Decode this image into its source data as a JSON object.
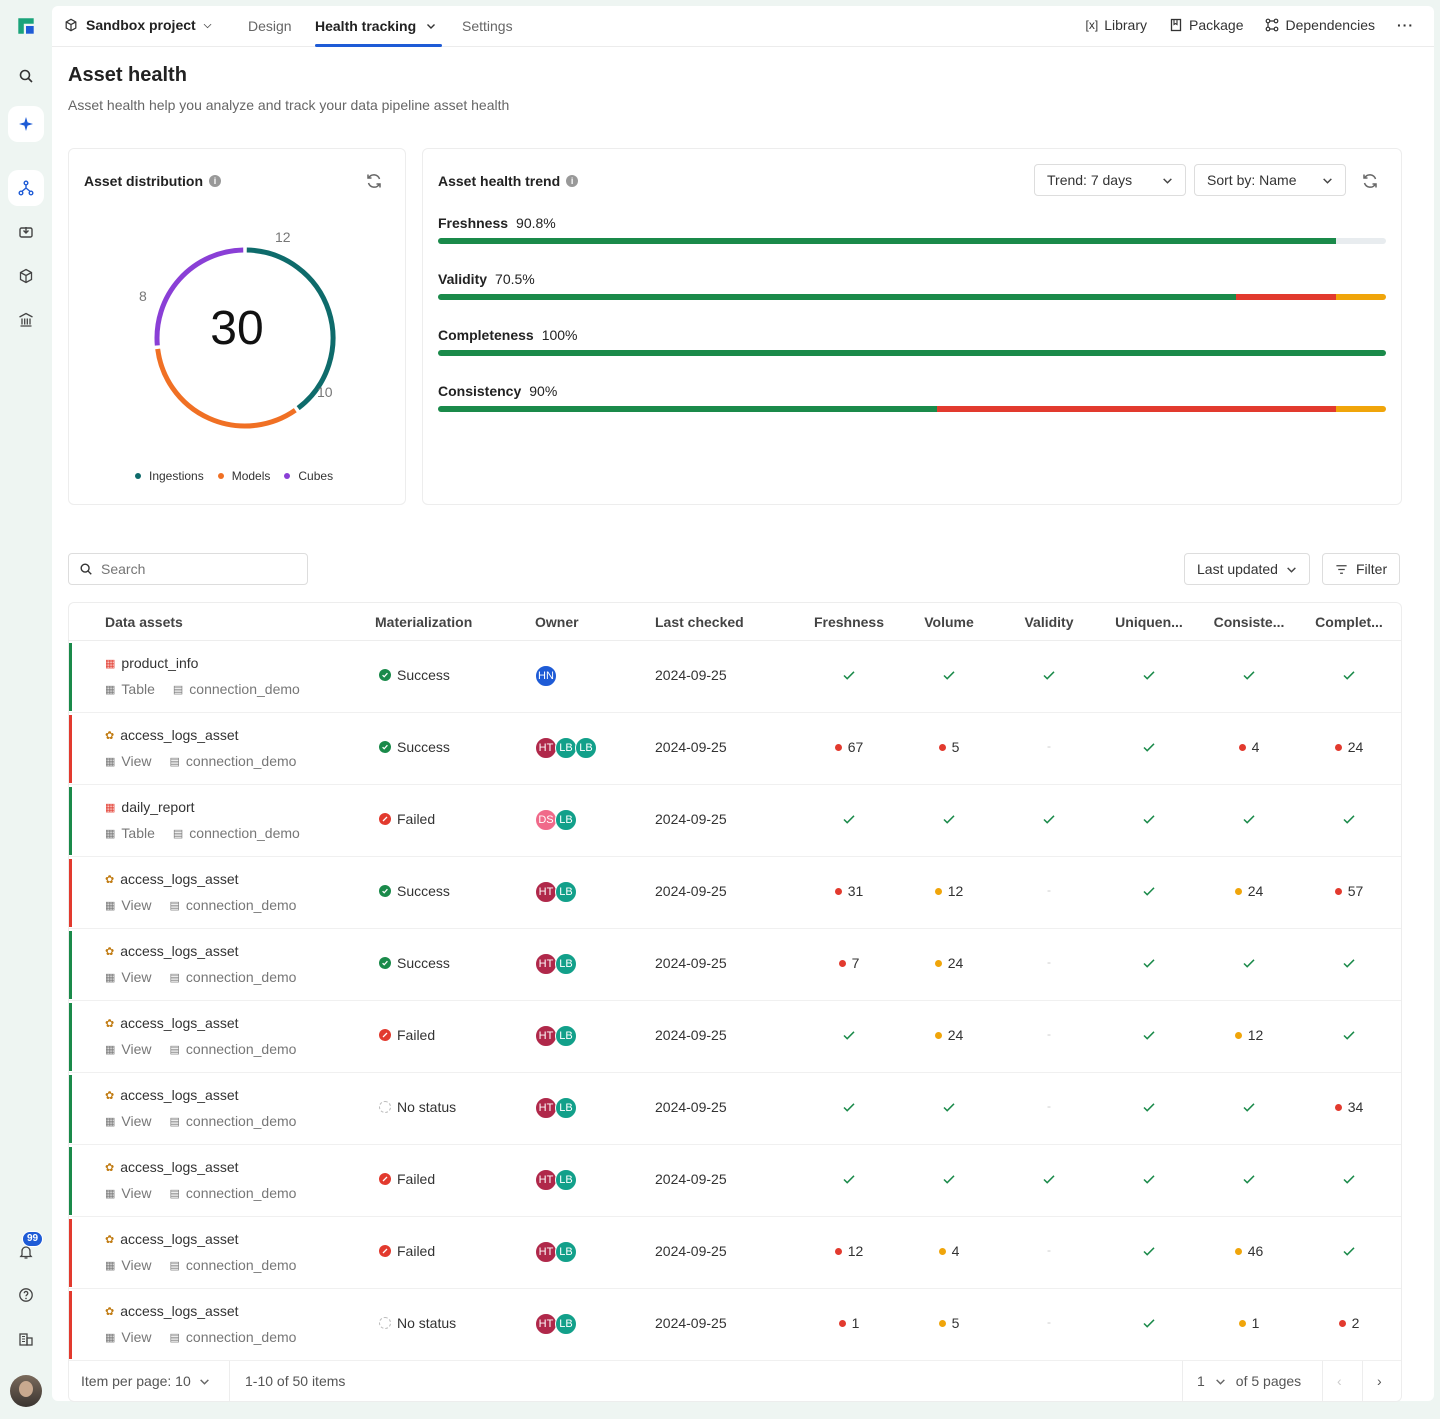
{
  "nav": {
    "project": "Sandbox project",
    "tabs": [
      "Design",
      "Health tracking",
      "Settings"
    ],
    "links": [
      "Library",
      "Package",
      "Dependencies"
    ],
    "notifications": "99"
  },
  "page": {
    "title": "Asset health",
    "subtitle": "Asset health help you analyze and track your data pipeline asset health"
  },
  "distribution": {
    "title": "Asset distribution",
    "total": "30",
    "segment_labels": [
      "12",
      "10",
      "8"
    ],
    "legend": [
      {
        "label": "Ingestions",
        "color": "#0e6b6b"
      },
      {
        "label": "Models",
        "color": "#f07024"
      },
      {
        "label": "Cubes",
        "color": "#8a3fd6"
      }
    ]
  },
  "trend": {
    "title": "Asset health trend",
    "trend_select": "Trend: 7 days",
    "sort_select": "Sort by: Name",
    "bars": [
      {
        "label": "Freshness",
        "value": "90.8%",
        "green": 0.947,
        "red": 0,
        "yellow": 0
      },
      {
        "label": "Validity",
        "value": "70.5%",
        "green": 0.842,
        "red": 0.105,
        "yellow": 0.053
      },
      {
        "label": "Completeness",
        "value": "100%",
        "green": 1.0,
        "red": 0,
        "yellow": 0
      },
      {
        "label": "Consistency",
        "value": "90%",
        "green": 0.526,
        "red": 0.421,
        "yellow": 0.053
      }
    ]
  },
  "toolbar": {
    "search_placeholder": "Search",
    "sort_label": "Last updated",
    "filter_label": "Filter"
  },
  "table": {
    "columns": [
      "Data assets",
      "Materialization",
      "Owner",
      "Last checked",
      "Freshness",
      "Volume",
      "Validity",
      "Uniquen...",
      "Consiste...",
      "Complet..."
    ],
    "rows": [
      {
        "status": "green",
        "name": "product_info",
        "type": "Table",
        "conn": "connection_demo",
        "mat": "Success",
        "owners": [
          "HN"
        ],
        "date": "2024-09-25",
        "m": [
          "c",
          "c",
          "c",
          "c",
          "c",
          "c"
        ]
      },
      {
        "status": "red",
        "name": "access_logs_asset",
        "type": "View",
        "conn": "connection_demo",
        "mat": "Success",
        "owners": [
          "HT",
          "LB",
          "LB"
        ],
        "date": "2024-09-25",
        "m": [
          "r:67",
          "r:5",
          "-",
          "c",
          "r:4",
          "r:24"
        ]
      },
      {
        "status": "green",
        "name": "daily_report",
        "type": "Table",
        "conn": "connection_demo",
        "mat": "Failed",
        "owners": [
          "DS",
          "LB"
        ],
        "date": "2024-09-25",
        "m": [
          "c",
          "c",
          "c",
          "c",
          "c",
          "c"
        ]
      },
      {
        "status": "red",
        "name": "access_logs_asset",
        "type": "View",
        "conn": "connection_demo",
        "mat": "Success",
        "owners": [
          "HT",
          "LB"
        ],
        "date": "2024-09-25",
        "m": [
          "r:31",
          "y:12",
          "-",
          "c",
          "y:24",
          "r:57"
        ]
      },
      {
        "status": "green",
        "name": "access_logs_asset",
        "type": "View",
        "conn": "connection_demo",
        "mat": "Success",
        "owners": [
          "HT",
          "LB"
        ],
        "date": "2024-09-25",
        "m": [
          "r:7",
          "y:24",
          "-",
          "c",
          "c",
          "c"
        ]
      },
      {
        "status": "green",
        "name": "access_logs_asset",
        "type": "View",
        "conn": "connection_demo",
        "mat": "Failed",
        "owners": [
          "HT",
          "LB"
        ],
        "date": "2024-09-25",
        "m": [
          "c",
          "y:24",
          "-",
          "c",
          "y:12",
          "c"
        ]
      },
      {
        "status": "green",
        "name": "access_logs_asset",
        "type": "View",
        "conn": "connection_demo",
        "mat": "No status",
        "owners": [
          "HT",
          "LB"
        ],
        "date": "2024-09-25",
        "m": [
          "c",
          "c",
          "-",
          "c",
          "c",
          "r:34"
        ]
      },
      {
        "status": "green",
        "name": "access_logs_asset",
        "type": "View",
        "conn": "connection_demo",
        "mat": "Failed",
        "owners": [
          "HT",
          "LB"
        ],
        "date": "2024-09-25",
        "m": [
          "c",
          "c",
          "c",
          "c",
          "c",
          "c"
        ]
      },
      {
        "status": "red",
        "name": "access_logs_asset",
        "type": "View",
        "conn": "connection_demo",
        "mat": "Failed",
        "owners": [
          "HT",
          "LB"
        ],
        "date": "2024-09-25",
        "m": [
          "r:12",
          "y:4",
          "-",
          "c",
          "y:46",
          "c"
        ]
      },
      {
        "status": "red",
        "name": "access_logs_asset",
        "type": "View",
        "conn": "connection_demo",
        "mat": "No status",
        "owners": [
          "HT",
          "LB"
        ],
        "date": "2024-09-25",
        "m": [
          "r:1",
          "y:5",
          "-",
          "c",
          "y:1",
          "r:2"
        ]
      }
    ]
  },
  "pagination": {
    "per_page": "Item per page: 10",
    "range": "1-10 of 50 items",
    "page": "1",
    "of_pages": "of 5 pages"
  },
  "colors": {
    "green": "#1a8a4a",
    "red": "#e23a2e",
    "yellow": "#f0a50a",
    "accent": "#1e5bd6"
  }
}
